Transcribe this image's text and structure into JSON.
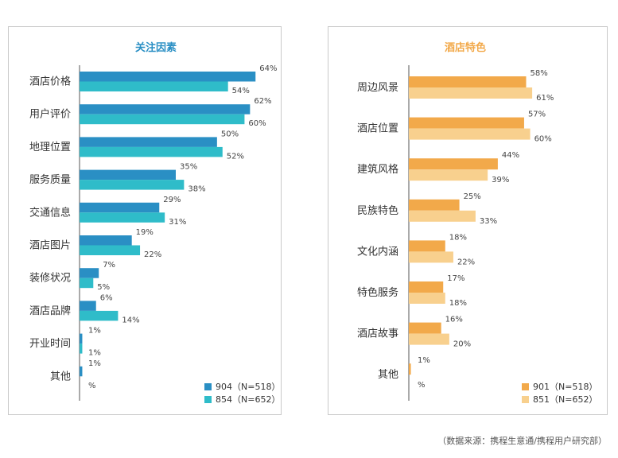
{
  "chart_data": [
    {
      "type": "bar",
      "orientation": "horizontal",
      "title": "关注因素",
      "categories": [
        "酒店价格",
        "用户评价",
        "地理位置",
        "服务质量",
        "交通信息",
        "酒店图片",
        "装修状况",
        "酒店品牌",
        "开业时间",
        "其他"
      ],
      "series": [
        {
          "name": "904（N=518）",
          "color": "#2a8fc4",
          "values": [
            64,
            62,
            50,
            35,
            29,
            19,
            7,
            6,
            1,
            1
          ],
          "labels": [
            "64%",
            "62%",
            "50%",
            "35%",
            "29%",
            "19%",
            "7%",
            "6%",
            "1%",
            "1%"
          ]
        },
        {
          "name": "854（N=652）",
          "color": "#2fbcc9",
          "values": [
            54,
            60,
            52,
            38,
            31,
            22,
            5,
            14,
            1,
            0
          ],
          "labels": [
            "54%",
            "60%",
            "52%",
            "38%",
            "31%",
            "22%",
            "5%",
            "14%",
            "1%",
            "%"
          ]
        }
      ],
      "xlim": [
        0,
        70
      ],
      "title_color": "#2a8fc4",
      "legend": "bottom-right"
    },
    {
      "type": "bar",
      "orientation": "horizontal",
      "title": "酒店特色",
      "categories": [
        "周边风景",
        "酒店位置",
        "建筑风格",
        "民族特色",
        "文化内涵",
        "特色服务",
        "酒店故事",
        "其他"
      ],
      "series": [
        {
          "name": "901（N=518）",
          "color": "#f2a94a",
          "values": [
            58,
            57,
            44,
            25,
            18,
            17,
            16,
            1
          ],
          "labels": [
            "58%",
            "57%",
            "44%",
            "25%",
            "18%",
            "17%",
            "16%",
            "1%"
          ]
        },
        {
          "name": "851（N=652）",
          "color": "#f8d08e",
          "values": [
            61,
            60,
            39,
            33,
            22,
            18,
            20,
            0
          ],
          "labels": [
            "61%",
            "60%",
            "39%",
            "33%",
            "22%",
            "18%",
            "20%",
            "%"
          ]
        }
      ],
      "xlim": [
        0,
        70
      ],
      "title_color": "#f2a94a",
      "legend": "bottom-right"
    }
  ],
  "source": "（数据来源：携程生意通/携程用户研究部）"
}
